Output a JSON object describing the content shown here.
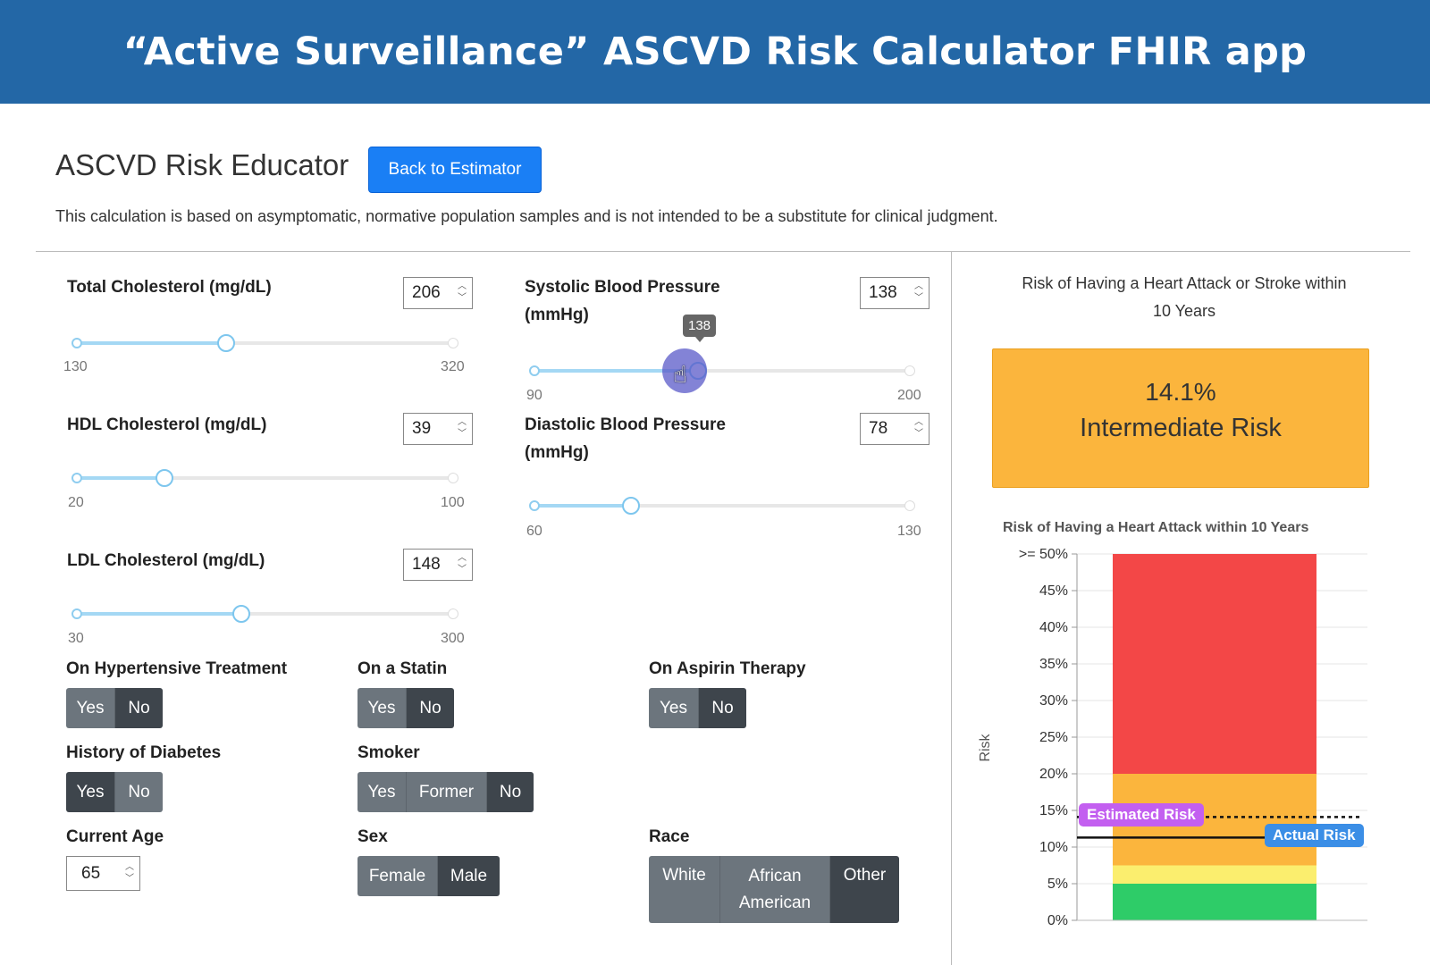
{
  "banner": {
    "title": "“Active Surveillance” ASCVD Risk Calculator FHIR app"
  },
  "header": {
    "title": "ASCVD Risk Educator",
    "back_button": "Back to Estimator",
    "disclaimer": "This calculation is based on asymptomatic, normative population samples and is not intended to be a substitute for clinical judgment."
  },
  "inputs": {
    "total_cholesterol": {
      "label": "Total Cholesterol (mg/dL)",
      "value": "206",
      "min": "130",
      "max": "320"
    },
    "hdl_cholesterol": {
      "label": "HDL Cholesterol (mg/dL)",
      "value": "39",
      "min": "20",
      "max": "100"
    },
    "ldl_cholesterol": {
      "label": "LDL Cholesterol (mg/dL)",
      "value": "148",
      "min": "30",
      "max": "300"
    },
    "systolic_bp": {
      "label_line1": "Systolic Blood Pressure",
      "label_line2": "(mmHg)",
      "value": "138",
      "min": "90",
      "max": "200",
      "tooltip": "138"
    },
    "diastolic_bp": {
      "label_line1": "Diastolic Blood Pressure",
      "label_line2": "(mmHg)",
      "value": "78",
      "min": "60",
      "max": "130"
    }
  },
  "toggles": {
    "hypertensive": {
      "label": "On Hypertensive Treatment",
      "options": [
        "Yes",
        "No"
      ],
      "selected": "No"
    },
    "statin": {
      "label": "On a Statin",
      "options": [
        "Yes",
        "No"
      ],
      "selected": "No"
    },
    "aspirin": {
      "label": "On Aspirin Therapy",
      "options": [
        "Yes",
        "No"
      ],
      "selected": "No"
    },
    "diabetes": {
      "label": "History of Diabetes",
      "options": [
        "Yes",
        "No"
      ],
      "selected": "Yes"
    },
    "smoker": {
      "label": "Smoker",
      "options": [
        "Yes",
        "Former",
        "No"
      ],
      "selected": "No"
    },
    "age": {
      "label": "Current Age",
      "value": "65"
    },
    "sex": {
      "label": "Sex",
      "options": [
        "Female",
        "Male"
      ],
      "selected": "Male"
    },
    "race": {
      "label": "Race",
      "options": [
        "White",
        "African",
        "American",
        "Other"
      ],
      "selected": "Other"
    }
  },
  "risk": {
    "title_line1": "Risk of Having a Heart Attack or Stroke within",
    "title_line2": "10 Years",
    "percent": "14.1%",
    "category": "Intermediate Risk",
    "color": "#fbb53d"
  },
  "chart_data": {
    "type": "bar",
    "title": "Risk of Having a Heart Attack within 10 Years",
    "ylabel": "Risk",
    "ylim": [
      0,
      50
    ],
    "yticks": [
      "0%",
      "5%",
      "10%",
      "15%",
      "20%",
      "25%",
      "30%",
      "35%",
      "40%",
      "45%",
      ">= 50%"
    ],
    "bands": [
      {
        "from": 0,
        "to": 5,
        "color": "#2ecc68"
      },
      {
        "from": 5,
        "to": 7.5,
        "color": "#fbee6e"
      },
      {
        "from": 7.5,
        "to": 20,
        "color": "#fbb53d"
      },
      {
        "from": 20,
        "to": 50,
        "color": "#f34747"
      }
    ],
    "estimated_risk": {
      "label": "Estimated Risk",
      "value": 14.1,
      "color": "#c35ff0"
    },
    "actual_risk": {
      "label": "Actual Risk",
      "value": 11.3,
      "color": "#3b8ee6"
    },
    "grid": true
  }
}
